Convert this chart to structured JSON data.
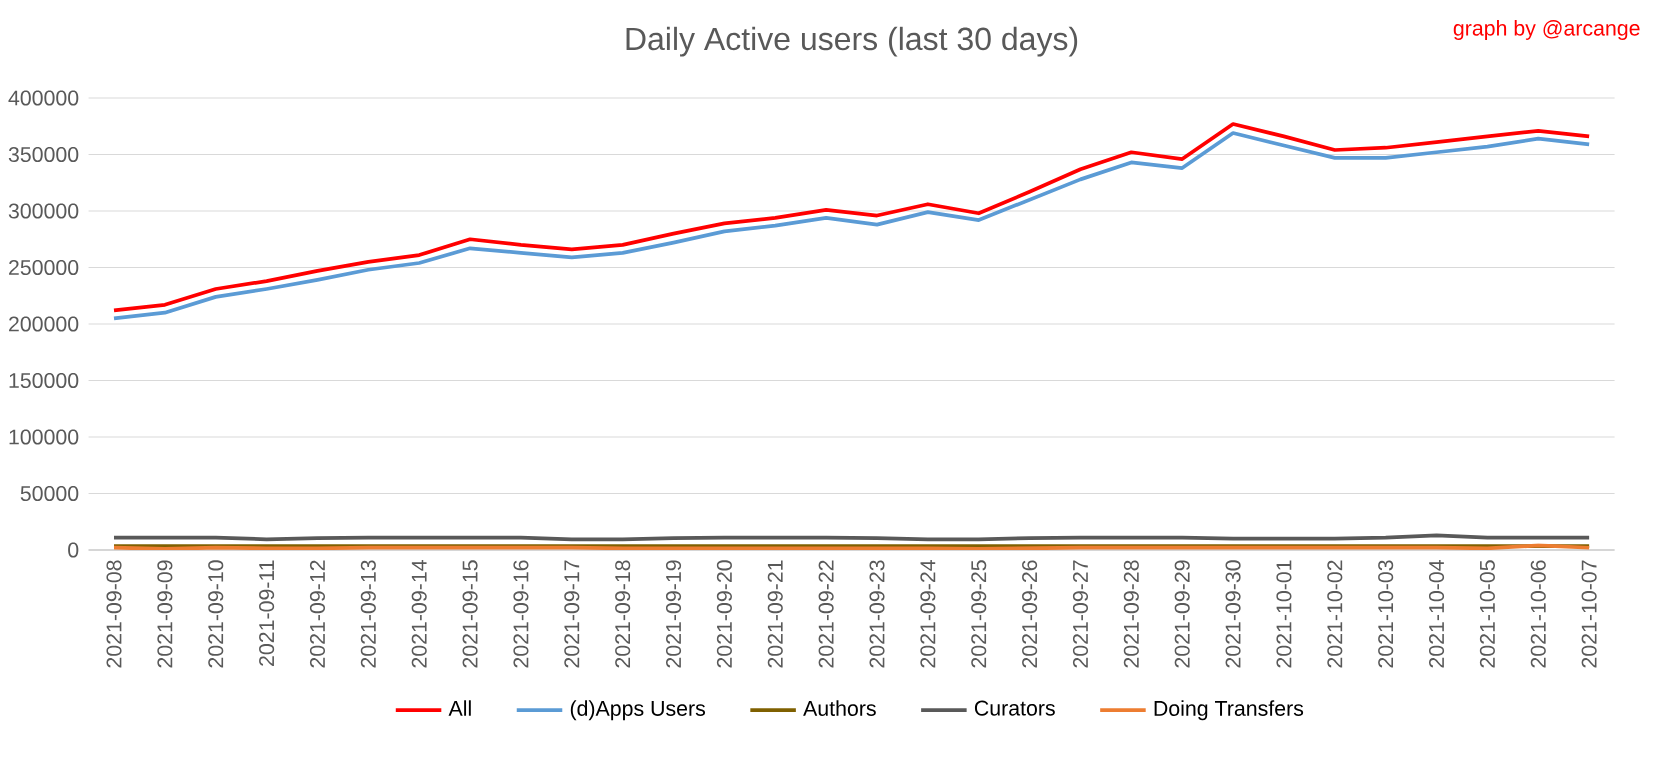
{
  "chart_data": {
    "type": "line",
    "title": "Daily Active users (last 30 days)",
    "annotations": [
      "graph by @arcange"
    ],
    "categories": [
      "2021-09-08",
      "2021-09-09",
      "2021-09-10",
      "2021-09-11",
      "2021-09-12",
      "2021-09-13",
      "2021-09-14",
      "2021-09-15",
      "2021-09-16",
      "2021-09-17",
      "2021-09-18",
      "2021-09-19",
      "2021-09-20",
      "2021-09-21",
      "2021-09-22",
      "2021-09-23",
      "2021-09-24",
      "2021-09-25",
      "2021-09-26",
      "2021-09-27",
      "2021-09-28",
      "2021-09-29",
      "2021-09-30",
      "2021-10-01",
      "2021-10-02",
      "2021-10-03",
      "2021-10-04",
      "2021-10-05",
      "2021-10-06",
      "2021-10-07"
    ],
    "series": [
      {
        "name": "All",
        "color": "#ff0000",
        "values": [
          212000,
          217000,
          231000,
          238000,
          247000,
          255000,
          261000,
          275000,
          270000,
          266000,
          270000,
          280000,
          289000,
          294000,
          301000,
          296000,
          306000,
          298000,
          317000,
          337000,
          352000,
          346000,
          377000,
          366000,
          354000,
          356000,
          361000,
          366000,
          371000,
          366000
        ]
      },
      {
        "name": "(d)Apps Users",
        "color": "#5b9bd5",
        "values": [
          205000,
          210000,
          224000,
          231000,
          239000,
          248000,
          254000,
          267000,
          263000,
          259000,
          263000,
          272000,
          282000,
          287000,
          294000,
          288000,
          299000,
          292000,
          310000,
          328000,
          343000,
          338000,
          369000,
          358000,
          347000,
          347000,
          352000,
          357000,
          364000,
          359000
        ]
      },
      {
        "name": "Authors",
        "color": "#7f6000",
        "values": [
          3500,
          3500,
          3500,
          3500,
          3500,
          3500,
          3500,
          3500,
          3500,
          3500,
          3500,
          3500,
          3500,
          3500,
          3500,
          3500,
          3500,
          3500,
          3500,
          3500,
          3500,
          3500,
          3500,
          3500,
          3500,
          3500,
          3500,
          3500,
          3500,
          3500
        ]
      },
      {
        "name": "Curators",
        "color": "#595959",
        "values": [
          11000,
          11000,
          11000,
          9500,
          10500,
          11000,
          11000,
          11000,
          11000,
          9500,
          9500,
          10500,
          11000,
          11000,
          11000,
          10500,
          9500,
          9500,
          10500,
          11000,
          11000,
          11000,
          10000,
          10000,
          10000,
          11000,
          13000,
          11000,
          11000,
          11000
        ]
      },
      {
        "name": "Doing Transfers",
        "color": "#ed7d31",
        "values": [
          2000,
          1000,
          2000,
          1500,
          1500,
          2000,
          2000,
          2000,
          2000,
          2000,
          1500,
          1500,
          1500,
          1500,
          1500,
          1500,
          1500,
          1000,
          1500,
          2000,
          2000,
          2000,
          2000,
          2000,
          2000,
          2000,
          2000,
          1500,
          4000,
          2000
        ]
      }
    ],
    "ylim": [
      0,
      400000
    ],
    "yticks": [
      0,
      50000,
      100000,
      150000,
      200000,
      250000,
      300000,
      350000,
      400000
    ],
    "grid": "y",
    "legend": "bottom"
  }
}
